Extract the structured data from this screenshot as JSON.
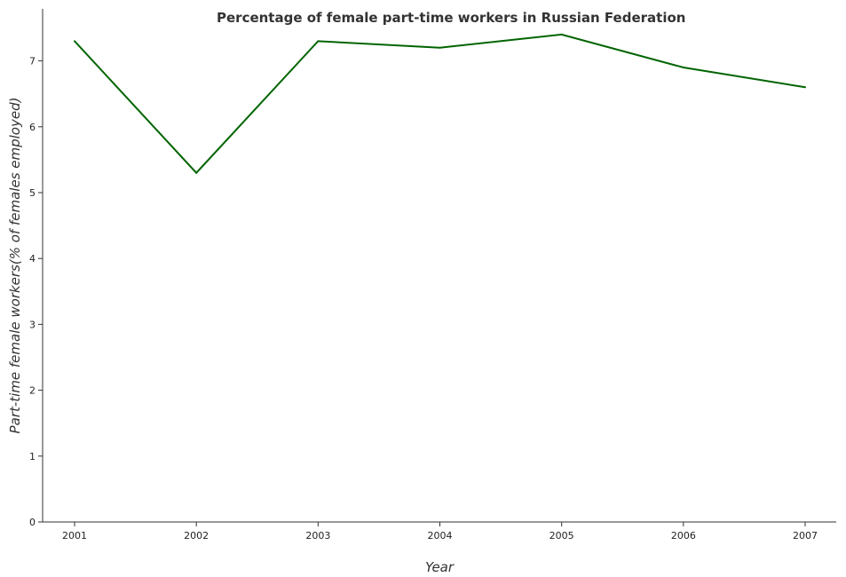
{
  "chart_data": {
    "type": "line",
    "title": "Percentage of female part-time workers in Russian Federation",
    "xlabel": "Year",
    "ylabel": "Part-time female workers(% of females employed)",
    "categories": [
      "2001",
      "2002",
      "2003",
      "2004",
      "2005",
      "2006",
      "2007"
    ],
    "series": [
      {
        "values": [
          7.3,
          5.3,
          7.3,
          7.2,
          7.4,
          6.9,
          6.6
        ],
        "color": "#006400"
      }
    ],
    "ylim": [
      0,
      7.5
    ],
    "yticks": [
      "0",
      "1",
      "2",
      "3",
      "4",
      "5",
      "6",
      "7"
    ],
    "grid": false,
    "legend": "none"
  }
}
